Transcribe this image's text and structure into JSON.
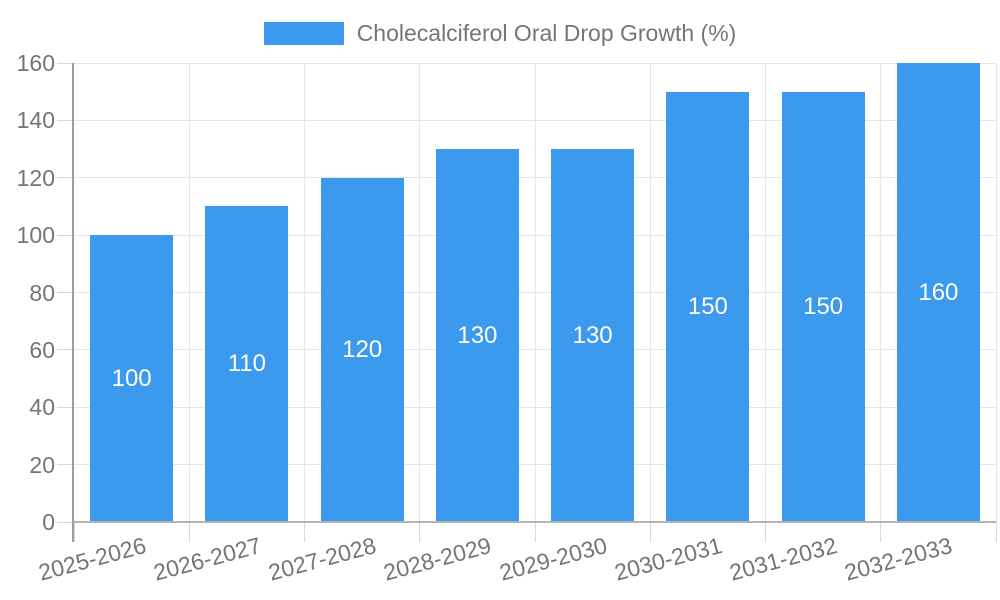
{
  "legend": {
    "label": "Cholecalciferol Oral Drop Growth (%)"
  },
  "chart_data": {
    "type": "bar",
    "title": "Cholecalciferol Oral Drop Growth (%)",
    "categories": [
      "2025-2026",
      "2026-2027",
      "2027-2028",
      "2028-2029",
      "2029-2030",
      "2030-2031",
      "2031-2032",
      "2032-2033"
    ],
    "values": [
      100,
      110,
      120,
      130,
      130,
      150,
      150,
      160
    ],
    "bar_value_labels": [
      "100",
      "110",
      "120",
      "130",
      "130",
      "150",
      "150",
      "160"
    ],
    "xlabel": "",
    "ylabel": "",
    "ylim": [
      0,
      160
    ],
    "yticks": [
      0,
      20,
      40,
      60,
      80,
      100,
      120,
      140,
      160
    ],
    "grid": true,
    "legend_position": "top-center",
    "colors": {
      "bar": "#3B99EE",
      "bar_label": "#FFFFFF",
      "axis_text": "#757575",
      "gridline": "#E6E6E6",
      "tick": "#D8D8D8",
      "y_axis_line": "#9E9E9E",
      "x_axis_line": "#B3B3B3",
      "background": "#FFFFFF"
    }
  }
}
